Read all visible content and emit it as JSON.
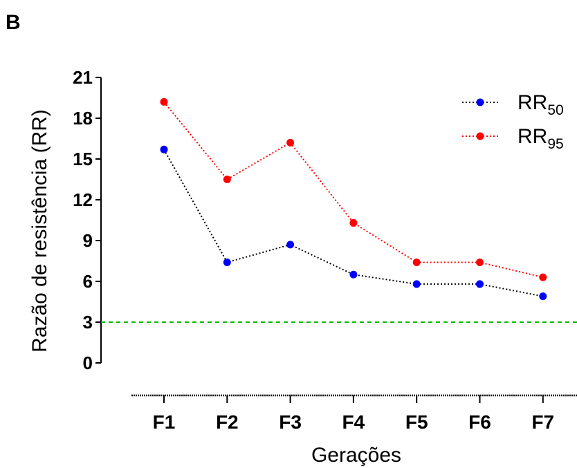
{
  "figure": {
    "panel_label": "B"
  },
  "chart_data": {
    "type": "line",
    "title": "",
    "xlabel": "Gerações",
    "ylabel": "Razão de resistência (RR)",
    "categories": [
      "F1",
      "F2",
      "F3",
      "F4",
      "F5",
      "F6",
      "F7"
    ],
    "ylim": [
      0,
      21
    ],
    "yticks": [
      0,
      3,
      6,
      9,
      12,
      15,
      18,
      21
    ],
    "grid": false,
    "legend_position": "top-right",
    "series": [
      {
        "name": "RR50",
        "legend_base": "RR",
        "legend_sub": "50",
        "color": "#0000ff",
        "line_color": "#000000",
        "line_style": "dotted",
        "values": [
          15.7,
          7.4,
          8.7,
          6.5,
          5.8,
          5.8,
          4.9
        ]
      },
      {
        "name": "RR95",
        "legend_base": "RR",
        "legend_sub": "95",
        "color": "#ff0000",
        "line_color": "#ff0000",
        "line_style": "dotted",
        "values": [
          19.2,
          13.5,
          16.2,
          10.3,
          7.4,
          7.4,
          6.3
        ]
      }
    ],
    "reference_line": {
      "y": 3,
      "color": "#00bb00",
      "style": "dashed"
    }
  }
}
